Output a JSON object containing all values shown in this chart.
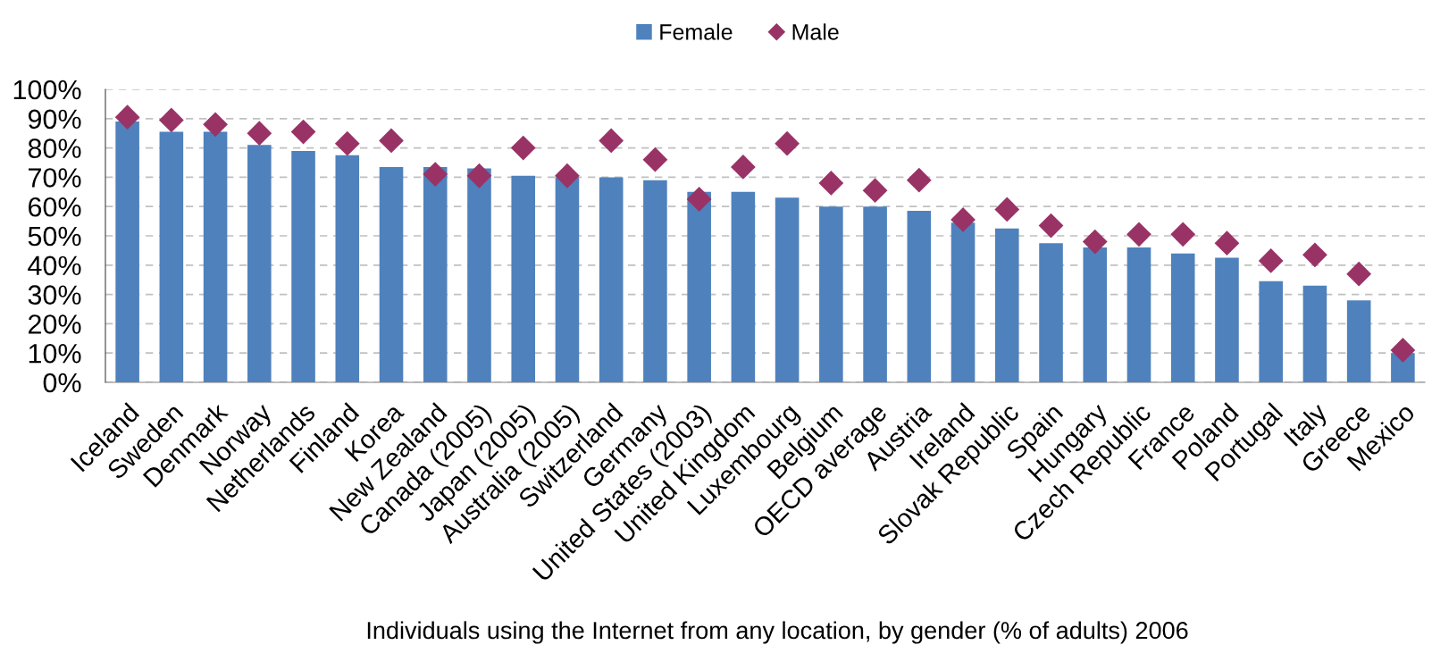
{
  "chart_data": {
    "type": "bar",
    "xlabel": "Individuals using the Internet from any location, by gender (% of adults) 2006",
    "categories": [
      "Iceland",
      "Sweden",
      "Denmark",
      "Norway",
      "Netherlands",
      "Finland",
      "Korea",
      "New Zealand",
      "Canada (2005)",
      "Japan (2005)",
      "Australia (2005)",
      "Switzerland",
      "Germany",
      "United States (2003)",
      "United Kingdom",
      "Luxembourg",
      "Belgium",
      "OECD average",
      "Austria",
      "Ireland",
      "Slovak Republic",
      "Spain",
      "Hungary",
      "Czech Republic",
      "France",
      "Poland",
      "Portugal",
      "Italy",
      "Greece",
      "Mexico"
    ],
    "series": [
      {
        "name": "Female",
        "color": "#4f81bd",
        "values": [
          89,
          85.5,
          85.5,
          81,
          79,
          77.5,
          73.5,
          73.5,
          73,
          70.5,
          70,
          70,
          69,
          65,
          65,
          63,
          60,
          60,
          58.5,
          54.5,
          52.5,
          47.5,
          46,
          46,
          44,
          42.5,
          34.5,
          33,
          28,
          10
        ]
      },
      {
        "name": "Male",
        "type": "scatter",
        "color": "#993366",
        "marker": "diamond",
        "values": [
          90.5,
          89.5,
          88,
          85,
          85.5,
          81.5,
          82.5,
          71,
          70.5,
          80,
          70.5,
          82.5,
          76,
          62.5,
          73.5,
          81.5,
          68,
          65.5,
          69,
          55.5,
          59,
          53.5,
          48,
          50.5,
          50.5,
          47.5,
          41.5,
          43.5,
          37,
          11
        ]
      }
    ],
    "ylim": [
      0,
      100
    ],
    "yticks": [
      {
        "value": 0,
        "label": "0%"
      },
      {
        "value": 10,
        "label": "10%"
      },
      {
        "value": 20,
        "label": "20%"
      },
      {
        "value": 30,
        "label": "30%"
      },
      {
        "value": 40,
        "label": "40%"
      },
      {
        "value": 50,
        "label": "50%"
      },
      {
        "value": 60,
        "label": "60%"
      },
      {
        "value": 70,
        "label": "70%"
      },
      {
        "value": 80,
        "label": "80%"
      },
      {
        "value": 90,
        "label": "90%"
      },
      {
        "value": 100,
        "label": "100%"
      }
    ],
    "grid": "y",
    "legend": "top"
  }
}
